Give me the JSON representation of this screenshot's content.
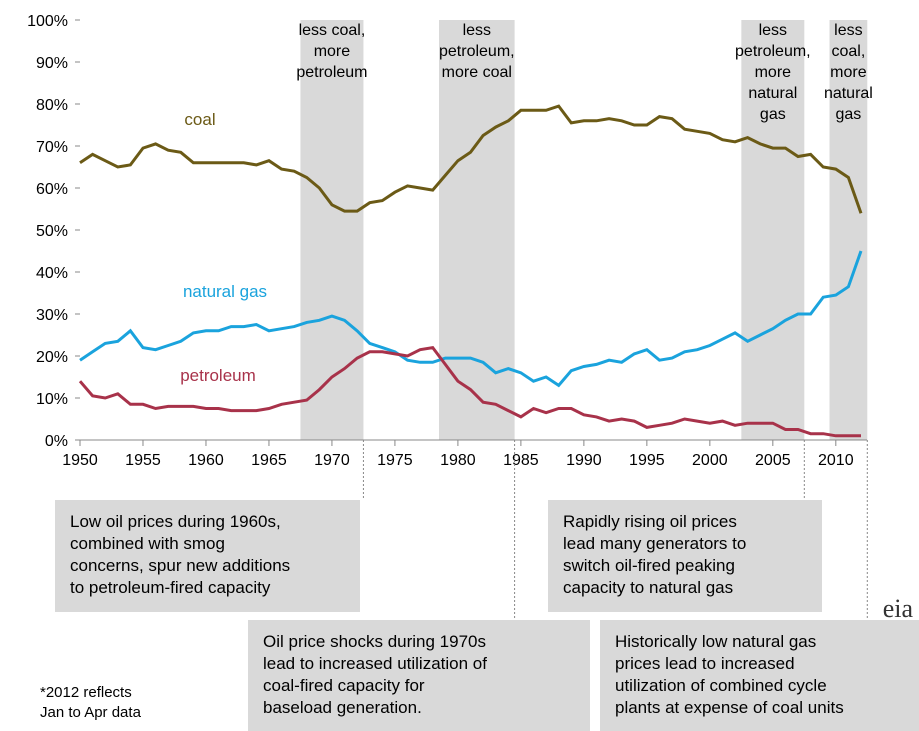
{
  "chart_data": {
    "type": "line",
    "x": [
      1950,
      1951,
      1952,
      1953,
      1954,
      1955,
      1956,
      1957,
      1958,
      1959,
      1960,
      1961,
      1962,
      1963,
      1964,
      1965,
      1966,
      1967,
      1968,
      1969,
      1970,
      1971,
      1972,
      1973,
      1974,
      1975,
      1976,
      1977,
      1978,
      1979,
      1980,
      1981,
      1982,
      1983,
      1984,
      1985,
      1986,
      1987,
      1988,
      1989,
      1990,
      1991,
      1992,
      1993,
      1994,
      1995,
      1996,
      1997,
      1998,
      1999,
      2000,
      2001,
      2002,
      2003,
      2004,
      2005,
      2006,
      2007,
      2008,
      2009,
      2010,
      2011,
      2012
    ],
    "series": [
      {
        "name": "coal",
        "color": "#6b5a16",
        "values": [
          66,
          68,
          66.5,
          65,
          65.5,
          69.5,
          70.5,
          69,
          68.5,
          66,
          66,
          66,
          66,
          66,
          65.5,
          66.5,
          64.5,
          64,
          62.5,
          60,
          56,
          54.5,
          54.5,
          56.5,
          57,
          59,
          60.5,
          60,
          59.5,
          63,
          66.5,
          68.5,
          72.5,
          74.5,
          76,
          78.5,
          78.5,
          78.5,
          79.5,
          75.5,
          76,
          76,
          76.5,
          76,
          75,
          75,
          77,
          76.5,
          74,
          73.5,
          73,
          71.5,
          71,
          72,
          70.5,
          69.5,
          69.5,
          67.5,
          68,
          65,
          64.5,
          62.5,
          54
        ]
      },
      {
        "name": "natural gas",
        "color": "#1aa3dd",
        "values": [
          19,
          21,
          23,
          23.5,
          26,
          22,
          21.5,
          22.5,
          23.5,
          25.5,
          26,
          26,
          27,
          27,
          27.5,
          26,
          26.5,
          27,
          28,
          28.5,
          29.5,
          28.5,
          26,
          23,
          22,
          21,
          19,
          18.5,
          18.5,
          19.5,
          19.5,
          19.5,
          18.5,
          16,
          17,
          16,
          14,
          15,
          13,
          16.5,
          17.5,
          18,
          19,
          18.5,
          20.5,
          21.5,
          19,
          19.5,
          21,
          21.5,
          22.5,
          24,
          25.5,
          23.5,
          25,
          26.5,
          28.5,
          30,
          30,
          34,
          34.5,
          36.5,
          45
        ]
      },
      {
        "name": "petroleum",
        "color": "#a8324a",
        "values": [
          14,
          10.5,
          10,
          11,
          8.5,
          8.5,
          7.5,
          8,
          8,
          8,
          7.5,
          7.5,
          7,
          7,
          7,
          7.5,
          8.5,
          9,
          9.5,
          12,
          15,
          17,
          19.5,
          21,
          21,
          20.5,
          20,
          21.5,
          22,
          18,
          14,
          12,
          9,
          8.5,
          7,
          5.5,
          7.5,
          6.5,
          7.5,
          7.5,
          6,
          5.5,
          4.5,
          5,
          4.5,
          3,
          3.5,
          4,
          5,
          4.5,
          4,
          4.5,
          3.5,
          4,
          4,
          4,
          2.5,
          2.5,
          1.5,
          1.5,
          1,
          1,
          1
        ]
      }
    ],
    "xlim": [
      1950,
      2012
    ],
    "xticks": [
      1950,
      1955,
      1960,
      1965,
      1970,
      1975,
      1980,
      1985,
      1990,
      1995,
      2000,
      2005,
      2010
    ],
    "ylim": [
      0,
      100
    ],
    "yticks": [
      {
        "value": 0,
        "label": "0%"
      },
      {
        "value": 10,
        "label": "10%"
      },
      {
        "value": 20,
        "label": "20%"
      },
      {
        "value": 30,
        "label": "30%"
      },
      {
        "value": 40,
        "label": "40%"
      },
      {
        "value": 50,
        "label": "50%"
      },
      {
        "value": 60,
        "label": "60%"
      },
      {
        "value": 70,
        "label": "70%"
      },
      {
        "value": 80,
        "label": "80%"
      },
      {
        "value": 90,
        "label": "90%"
      },
      {
        "value": 100,
        "label": "100%"
      }
    ],
    "shaded_periods": [
      {
        "start": 1967.5,
        "end": 1972.5,
        "label": [
          "less coal,",
          "more",
          "petroleum"
        ]
      },
      {
        "start": 1978.5,
        "end": 1984.5,
        "label": [
          "less",
          "petroleum,",
          "more coal"
        ]
      },
      {
        "start": 2002.5,
        "end": 2007.5,
        "label": [
          "less",
          "petroleum,",
          "more",
          "natural",
          "gas"
        ]
      },
      {
        "start": 2009.5,
        "end": 2012.5,
        "label": [
          "less",
          "coal,",
          "more",
          "natural",
          "gas"
        ]
      }
    ],
    "annotations": [
      [
        "Low oil prices during 1960s,",
        "combined with smog",
        "concerns, spur new additions",
        "to petroleum-fired capacity"
      ],
      [
        "Oil price shocks during 1970s",
        "lead to increased utilization of",
        "coal-fired capacity for",
        "baseload generation."
      ],
      [
        "Rapidly rising oil prices",
        "lead many generators to",
        "switch oil-fired peaking",
        "capacity to natural gas"
      ],
      [
        "Historically low natural gas",
        "prices lead to increased",
        "utilization of combined cycle",
        "plants at expense of coal units"
      ]
    ],
    "footnote": [
      "*2012 reflects",
      "Jan to Apr data"
    ],
    "logo": "eia"
  }
}
